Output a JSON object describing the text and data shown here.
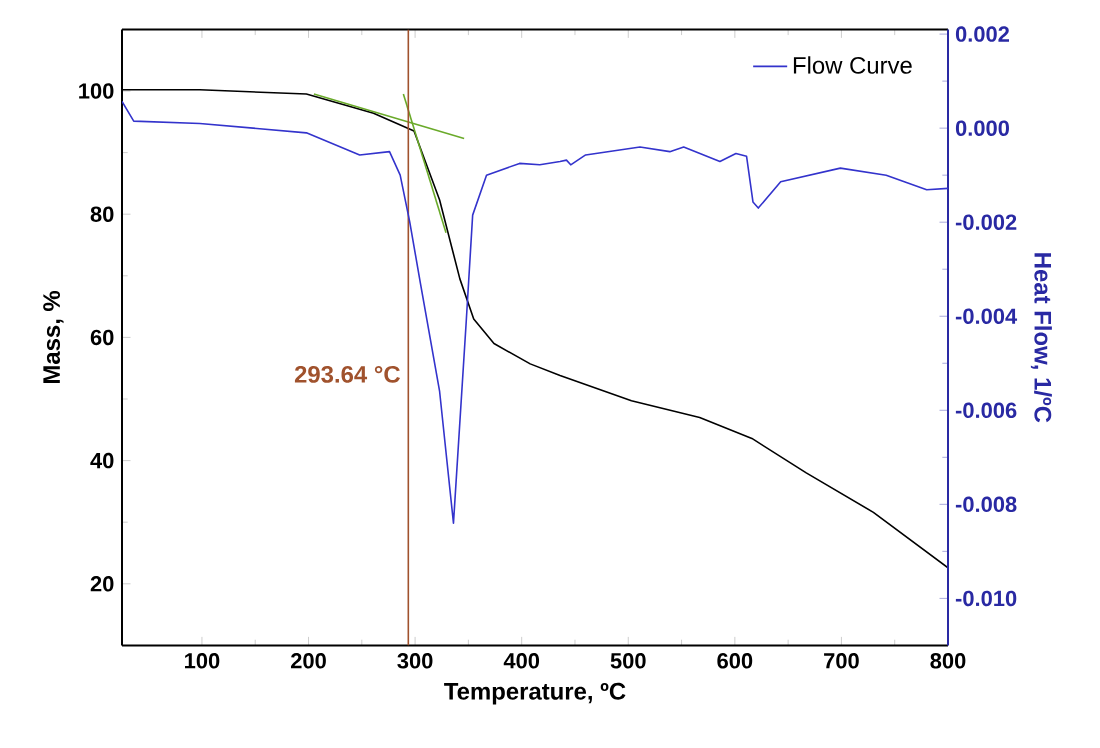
{
  "chart_data": {
    "type": "line",
    "xlabel": "Temperature, ºC",
    "ylabel": "Mass, %",
    "y2label": "Heat Flow, 1/ºC",
    "xlim": [
      25,
      800
    ],
    "xticks": [
      100,
      200,
      300,
      400,
      500,
      600,
      700,
      800
    ],
    "ylim": [
      10,
      110
    ],
    "yticks": [
      20,
      40,
      60,
      80,
      100
    ],
    "y2lim": [
      -0.011,
      0.0021
    ],
    "y2ticks": [
      {
        "value": 0.002,
        "label": "0.002"
      },
      {
        "value": 0,
        "label": "0.000"
      },
      {
        "value": -0.002,
        "label": "-0.002"
      },
      {
        "value": -0.004,
        "label": "-0.004"
      },
      {
        "value": -0.006,
        "label": "-0.006"
      },
      {
        "value": -0.008,
        "label": "-0.008"
      },
      {
        "value": -0.01,
        "label": "-0.010"
      }
    ],
    "legend": "top right",
    "series": [
      {
        "color": "#000000",
        "line_style": "solid",
        "x": [
          25,
          98,
          198,
          261,
          299,
          323,
          342,
          355,
          374,
          408,
          436,
          503,
          567,
          616,
          667,
          730,
          800
        ],
        "values": [
          100.2,
          100.2,
          99.5,
          96.4,
          93.5,
          82.3,
          69.5,
          63,
          59,
          55.7,
          53.8,
          49.7,
          47,
          43.6,
          38,
          31.6,
          22.6
        ]
      },
      {
        "name": "Flow Curve",
        "color": "#3333cc",
        "axis": "y2",
        "line_style": "solid",
        "x": [
          25,
          36,
          98,
          198,
          248,
          276,
          286,
          295,
          305,
          323,
          336,
          348,
          354,
          367,
          398,
          417,
          436,
          442,
          446,
          460,
          511,
          539,
          552,
          586,
          601,
          611,
          617,
          622,
          643,
          699,
          742,
          780,
          800
        ],
        "values": [
          0.00057,
          0.00015,
          0.0001,
          -0.0001,
          -0.00057,
          -0.0005,
          -0.001,
          -0.002,
          -0.0033,
          -0.0056,
          -0.0084,
          -0.0041,
          -0.00185,
          -0.001,
          -0.00075,
          -0.00078,
          -0.00071,
          -0.00068,
          -0.00078,
          -0.00057,
          -0.0004,
          -0.0005,
          -0.0004,
          -0.00071,
          -0.00054,
          -0.0006,
          -0.00157,
          -0.0017,
          -0.00114,
          -0.00085,
          -0.001,
          -0.00131,
          -0.00128
        ]
      },
      {
        "color": "#6aaa2a",
        "line_style": "solid",
        "x": [
          205,
          346
        ],
        "values": [
          99.5,
          92.3
        ]
      },
      {
        "color": "#6aaa2a",
        "line_style": "solid",
        "x": [
          289,
          329
        ],
        "values": [
          99.5,
          77
        ]
      }
    ],
    "ref_lines": [
      {
        "axis": "x",
        "value": 293.64,
        "label": "293.64 °C",
        "color": "#a0522d"
      }
    ]
  }
}
